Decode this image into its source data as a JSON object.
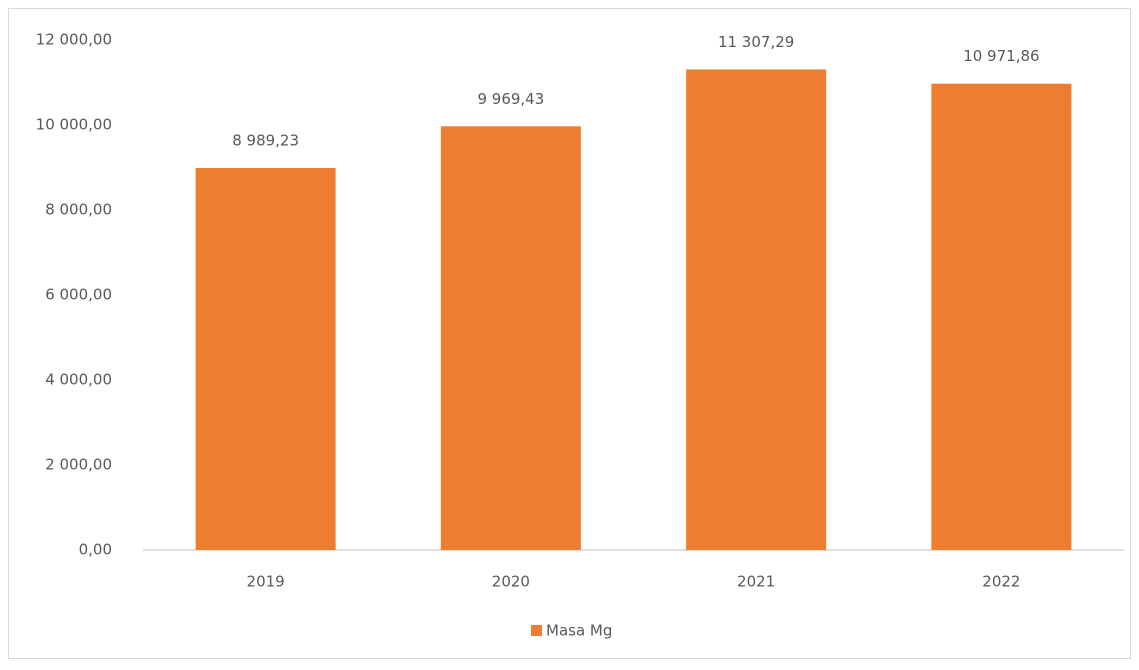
{
  "chart_data": {
    "type": "bar",
    "categories": [
      "2019",
      "2020",
      "2021",
      "2022"
    ],
    "series": [
      {
        "name": "Masa Mg",
        "color": "#ED7D31",
        "values": [
          8989.23,
          9969.43,
          11307.29,
          10971.86
        ],
        "value_labels": [
          "8 989,23",
          "9 969,43",
          "11 307,29",
          "10 971,86"
        ]
      }
    ],
    "ylim": [
      0,
      12000
    ],
    "yticks": [
      {
        "value": 0,
        "label": "0,00"
      },
      {
        "value": 2000,
        "label": "2 000,00"
      },
      {
        "value": 4000,
        "label": "4 000,00"
      },
      {
        "value": 6000,
        "label": "6 000,00"
      },
      {
        "value": 8000,
        "label": "8 000,00"
      },
      {
        "value": 10000,
        "label": "10 000,00"
      },
      {
        "value": 12000,
        "label": "12 000,00"
      }
    ],
    "grid": false,
    "legend": "bottom"
  }
}
